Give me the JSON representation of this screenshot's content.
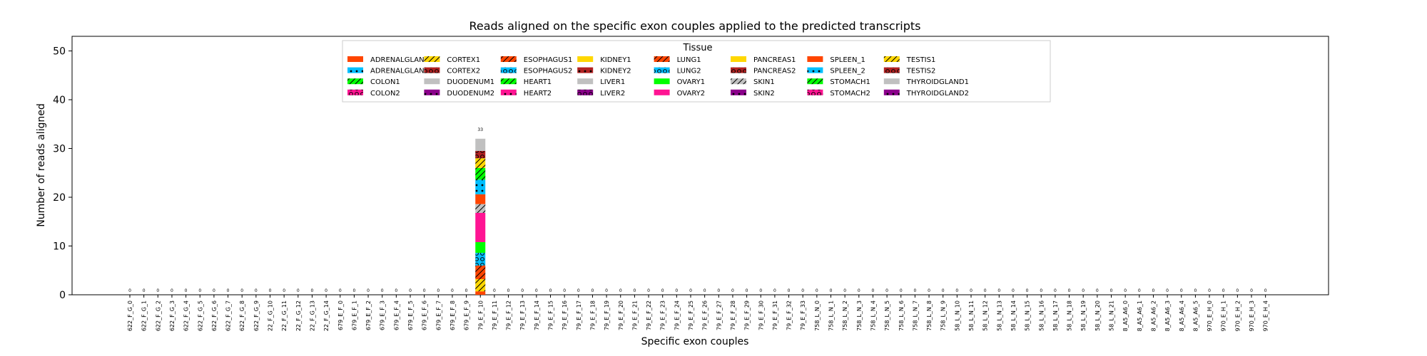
{
  "chart_data": {
    "type": "bar",
    "stacked": true,
    "title": "Reads aligned on the specific exon couples applied to the predicted transcripts",
    "xlabel": "Specific exon couples",
    "ylabel": "Number of reads aligned",
    "ylim": [
      0,
      53
    ],
    "yticks": [
      0,
      10,
      20,
      30,
      40,
      50
    ],
    "grid": false,
    "legend": {
      "title": "Tissue",
      "placement": "top-center",
      "columns": 9
    },
    "categories": [
      "622_F_G_0",
      "622_F_G_1",
      "622_F_G_2",
      "622_F_G_3",
      "622_F_G_4",
      "622_F_G_5",
      "622_F_G_6",
      "622_F_G_7",
      "622_F_G_8",
      "622_F_G_9",
      "22_F_G_10",
      "22_F_G_11",
      "22_F_G_12",
      "22_F_G_13",
      "22_F_G_14",
      "679_E_F_0",
      "679_E_F_1",
      "679_E_F_2",
      "679_E_F_3",
      "679_E_F_4",
      "679_E_F_5",
      "679_E_F_6",
      "679_E_F_7",
      "679_E_F_8",
      "679_E_F_9",
      "79_E_F_10",
      "79_E_F_11",
      "79_E_F_12",
      "79_E_F_13",
      "79_E_F_14",
      "79_E_F_15",
      "79_E_F_16",
      "79_E_F_17",
      "79_E_F_18",
      "79_E_F_19",
      "79_E_F_20",
      "79_E_F_21",
      "79_E_F_22",
      "79_E_F_23",
      "79_E_F_24",
      "79_E_F_25",
      "79_E_F_26",
      "79_E_F_27",
      "79_E_F_28",
      "79_E_F_29",
      "79_E_F_30",
      "79_E_F_31",
      "79_E_F_32",
      "79_E_F_33",
      "758_L_N_0",
      "758_L_N_1",
      "758_L_N_2",
      "758_L_N_3",
      "758_L_N_4",
      "758_L_N_5",
      "758_L_N_6",
      "758_L_N_7",
      "758_L_N_8",
      "758_L_N_9",
      "58_L_N_10",
      "58_L_N_11",
      "58_L_N_12",
      "58_L_N_13",
      "58_L_N_14",
      "58_L_N_15",
      "58_L_N_16",
      "58_L_N_17",
      "58_L_N_18",
      "58_L_N_19",
      "58_L_N_20",
      "58_L_N_21",
      "8_A5_A6_0",
      "8_A5_A6_1",
      "8_A5_A6_2",
      "8_A5_A6_3",
      "8_A5_A6_4",
      "8_A5_A6_5",
      "970_E_H_0",
      "970_E_H_1",
      "970_E_H_2",
      "970_E_H_3",
      "970_E_H_4"
    ],
    "totals": [
      0,
      0,
      0,
      0,
      0,
      0,
      0,
      0,
      0,
      0,
      0,
      0,
      0,
      0,
      0,
      0,
      0,
      0,
      0,
      0,
      0,
      0,
      0,
      0,
      0,
      33,
      0,
      0,
      0,
      0,
      0,
      0,
      0,
      0,
      0,
      0,
      0,
      0,
      0,
      0,
      0,
      0,
      0,
      0,
      0,
      0,
      0,
      0,
      0,
      0,
      0,
      0,
      0,
      0,
      0,
      0,
      0,
      0,
      0,
      0,
      0,
      0,
      0,
      0,
      0,
      0,
      0,
      0,
      0,
      0,
      0,
      0,
      0,
      0,
      0,
      0,
      0,
      0,
      0,
      0,
      0,
      0
    ],
    "stack_category": "79_E_F_10",
    "series": [
      {
        "name": "ADRENALGLAND1",
        "color": "#ff4500",
        "hatch": "none",
        "values_at_stack": 0.7
      },
      {
        "name": "CORTEX1",
        "color": "#ffd700",
        "hatch": "slash",
        "values_at_stack": 2.5
      },
      {
        "name": "ESOPHAGUS1",
        "color": "#ff4500",
        "hatch": "slash",
        "values_at_stack": 2.8
      },
      {
        "name": "LUNG2",
        "color": "#00bfff",
        "hatch": "circle",
        "values_at_stack": 2.6
      },
      {
        "name": "OVARY1",
        "color": "#00ff00",
        "hatch": "none",
        "values_at_stack": 2.2
      },
      {
        "name": "OVARY2",
        "color": "#ff1493",
        "hatch": "none",
        "values_at_stack": 6.0
      },
      {
        "name": "SKIN1",
        "color": "#c0c0c0",
        "hatch": "slash",
        "values_at_stack": 1.8
      },
      {
        "name": "SPLEEN_1",
        "color": "#ff4500",
        "hatch": "none",
        "values_at_stack": 2.0
      },
      {
        "name": "SPLEEN_2",
        "color": "#00bfff",
        "hatch": "dot",
        "values_at_stack": 3.0
      },
      {
        "name": "STOMACH1",
        "color": "#00ff00",
        "hatch": "slash",
        "values_at_stack": 2.4
      },
      {
        "name": "TESTIS1",
        "color": "#ffd700",
        "hatch": "slash",
        "values_at_stack": 2.0
      },
      {
        "name": "TESTIS2",
        "color": "#b22222",
        "hatch": "circle",
        "values_at_stack": 1.5
      },
      {
        "name": "THYROIDGLAND1",
        "color": "#c0c0c0",
        "hatch": "none",
        "values_at_stack": 2.5
      }
    ],
    "legend_entries": [
      {
        "name": "ADRENALGLAND1",
        "color": "#ff4500",
        "hatch": "none"
      },
      {
        "name": "ADRENALGLAND2",
        "color": "#00bfff",
        "hatch": "dot"
      },
      {
        "name": "COLON1",
        "color": "#00ff00",
        "hatch": "slash"
      },
      {
        "name": "COLON2",
        "color": "#ff1493",
        "hatch": "circle"
      },
      {
        "name": "CORTEX1",
        "color": "#ffd700",
        "hatch": "slash"
      },
      {
        "name": "CORTEX2",
        "color": "#b22222",
        "hatch": "circle"
      },
      {
        "name": "DUODENUM1",
        "color": "#c0c0c0",
        "hatch": "none"
      },
      {
        "name": "DUODENUM2",
        "color": "#8b008b",
        "hatch": "dot"
      },
      {
        "name": "ESOPHAGUS1",
        "color": "#ff4500",
        "hatch": "slash"
      },
      {
        "name": "ESOPHAGUS2",
        "color": "#00bfff",
        "hatch": "circle"
      },
      {
        "name": "HEART1",
        "color": "#00ff00",
        "hatch": "slash"
      },
      {
        "name": "HEART2",
        "color": "#ff1493",
        "hatch": "dot"
      },
      {
        "name": "KIDNEY1",
        "color": "#ffd700",
        "hatch": "none"
      },
      {
        "name": "KIDNEY2",
        "color": "#b22222",
        "hatch": "dot"
      },
      {
        "name": "LIVER1",
        "color": "#c0c0c0",
        "hatch": "none"
      },
      {
        "name": "LIVER2",
        "color": "#8b008b",
        "hatch": "circle"
      },
      {
        "name": "LUNG1",
        "color": "#ff4500",
        "hatch": "slash"
      },
      {
        "name": "LUNG2",
        "color": "#00bfff",
        "hatch": "circle"
      },
      {
        "name": "OVARY1",
        "color": "#00ff00",
        "hatch": "none"
      },
      {
        "name": "OVARY2",
        "color": "#ff1493",
        "hatch": "none"
      },
      {
        "name": "PANCREAS1",
        "color": "#ffd700",
        "hatch": "none"
      },
      {
        "name": "PANCREAS2",
        "color": "#b22222",
        "hatch": "circle"
      },
      {
        "name": "SKIN1",
        "color": "#c0c0c0",
        "hatch": "slash"
      },
      {
        "name": "SKIN2",
        "color": "#8b008b",
        "hatch": "dot"
      },
      {
        "name": "SPLEEN_1",
        "color": "#ff4500",
        "hatch": "none"
      },
      {
        "name": "SPLEEN_2",
        "color": "#00bfff",
        "hatch": "dot"
      },
      {
        "name": "STOMACH1",
        "color": "#00ff00",
        "hatch": "slash"
      },
      {
        "name": "STOMACH2",
        "color": "#ff1493",
        "hatch": "circle"
      },
      {
        "name": "TESTIS1",
        "color": "#ffd700",
        "hatch": "slash"
      },
      {
        "name": "TESTIS2",
        "color": "#b22222",
        "hatch": "circle"
      },
      {
        "name": "THYROIDGLAND1",
        "color": "#c0c0c0",
        "hatch": "none"
      },
      {
        "name": "THYROIDGLAND2",
        "color": "#8b008b",
        "hatch": "dot"
      }
    ]
  }
}
